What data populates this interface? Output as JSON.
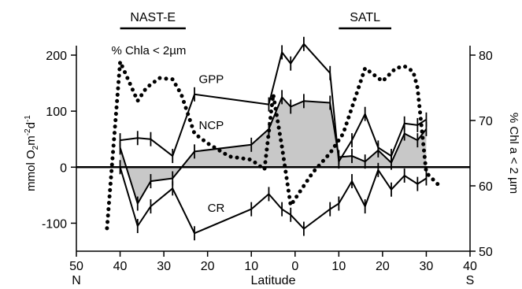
{
  "chart_data": {
    "type": "line",
    "xlabel": "Latitude",
    "ylabel_left_parts": [
      "mmol O",
      "2",
      "m",
      "-2",
      "d",
      "-1"
    ],
    "ylabel_right": "% Chl a < 2 µm",
    "x_axis": {
      "range": [
        50,
        -40
      ],
      "ticks": [
        50,
        40,
        30,
        20,
        10,
        0,
        -10,
        -20,
        -30,
        -40
      ],
      "tick_labels": [
        "50",
        "40",
        "30",
        "20",
        "10",
        "0",
        "10",
        "20",
        "30",
        "40"
      ],
      "hemisphere_labels": {
        "north": "N",
        "south": "S"
      }
    },
    "y_left": {
      "range": [
        -150,
        200
      ],
      "ticks": [
        -100,
        0,
        100,
        200
      ],
      "tick_labels": [
        "-100",
        "0",
        "100",
        "200"
      ]
    },
    "y_right": {
      "range": [
        50,
        80
      ],
      "ticks": [
        50,
        60,
        70,
        80
      ],
      "tick_labels": [
        "50",
        "60",
        "70",
        "80"
      ]
    },
    "provinces": [
      {
        "label": "NAST-E",
        "lat_from": 40,
        "lat_to": 25
      },
      {
        "label": "SATL",
        "lat_from": -10,
        "lat_to": -22
      }
    ],
    "series": [
      {
        "name": "GPP",
        "axis": "left",
        "x": [
          40,
          36,
          33,
          28,
          23,
          6,
          3,
          1,
          -2,
          -8,
          -10,
          -13,
          -16,
          -19,
          -22,
          -25,
          -28,
          -30
        ],
        "y": [
          48,
          52,
          50,
          20,
          130,
          112,
          205,
          185,
          220,
          168,
          10,
          48,
          95,
          35,
          20,
          78,
          75,
          85
        ]
      },
      {
        "name": "NCP",
        "axis": "left",
        "x": [
          40,
          36,
          33,
          28,
          23,
          10,
          6,
          3,
          1,
          -2,
          -8,
          -10,
          -13,
          -16,
          -19,
          -22,
          -25,
          -28,
          -30
        ],
        "y": [
          35,
          -65,
          -25,
          -20,
          28,
          40,
          68,
          125,
          108,
          118,
          115,
          18,
          20,
          10,
          30,
          8,
          60,
          48,
          68
        ]
      },
      {
        "name": "CR",
        "axis": "left",
        "x": [
          40,
          36,
          33,
          28,
          23,
          10,
          6,
          3,
          1,
          -2,
          -8,
          -10,
          -13,
          -16,
          -19,
          -22,
          -25,
          -28,
          -30
        ],
        "y": [
          0,
          -105,
          -70,
          -38,
          -118,
          -75,
          -48,
          -75,
          -85,
          -110,
          -75,
          -65,
          -25,
          -70,
          -5,
          -40,
          -15,
          -30,
          -20
        ]
      },
      {
        "name": "% Chla < 2µm",
        "axis": "right",
        "style": "dotted",
        "x": [
          43,
          40,
          38,
          36,
          34,
          31,
          28,
          26,
          23,
          20,
          15,
          10,
          7,
          5,
          3,
          1,
          -1,
          -4,
          -8,
          -11,
          -14,
          -16,
          -18,
          -20,
          -23,
          -25,
          -27,
          -28,
          -30,
          -33
        ],
        "y": [
          53.5,
          79,
          76,
          73,
          75,
          76.5,
          76.3,
          74,
          68,
          66.5,
          64.5,
          64,
          62.5,
          74,
          66,
          57,
          59,
          62,
          65,
          68,
          74,
          78,
          77,
          76,
          78,
          78.3,
          77.5,
          75,
          62,
          60
        ]
      }
    ],
    "annotations": {
      "gpp_label": "GPP",
      "ncp_label": "NCP",
      "cr_label": "CR",
      "chla_label": "% Chla < 2µm"
    },
    "shaded_area": "NCP",
    "fill_color": "#c8c8c8",
    "grid": false,
    "legend": "none"
  }
}
